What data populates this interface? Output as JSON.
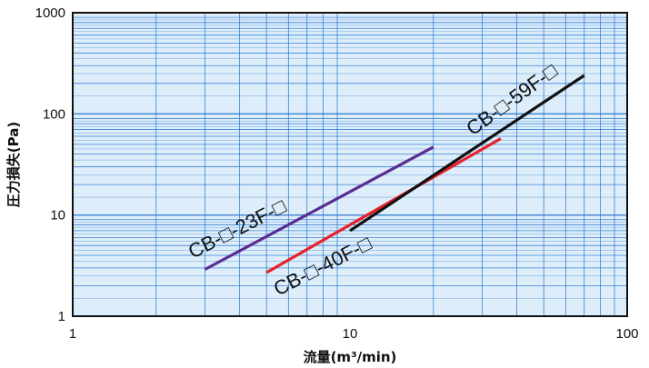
{
  "chart_data": {
    "type": "line",
    "x_scale": "log",
    "y_scale": "log",
    "xlim": [
      1,
      100
    ],
    "ylim": [
      1,
      1000
    ],
    "x_tick_labels": [
      "1",
      "10",
      "100"
    ],
    "y_tick_labels": [
      "1",
      "10",
      "100",
      "1000"
    ],
    "xlabel": "流量(m³/min)",
    "ylabel": "圧力損失(Pa)",
    "grid": true,
    "plot_background": "#ddeefa",
    "grid_color": "#1f6fd0",
    "series": [
      {
        "name": "CB-□-23F-□",
        "color": "#5b2c91",
        "points": [
          [
            3,
            2.9
          ],
          [
            20,
            47
          ]
        ]
      },
      {
        "name": "CB-□-40F-□",
        "color": "#e8202a",
        "points": [
          [
            5,
            2.7
          ],
          [
            35,
            57
          ]
        ]
      },
      {
        "name": "CB-□-59F-□",
        "color": "#111111",
        "points": [
          [
            10,
            7
          ],
          [
            70,
            240
          ]
        ]
      }
    ]
  }
}
